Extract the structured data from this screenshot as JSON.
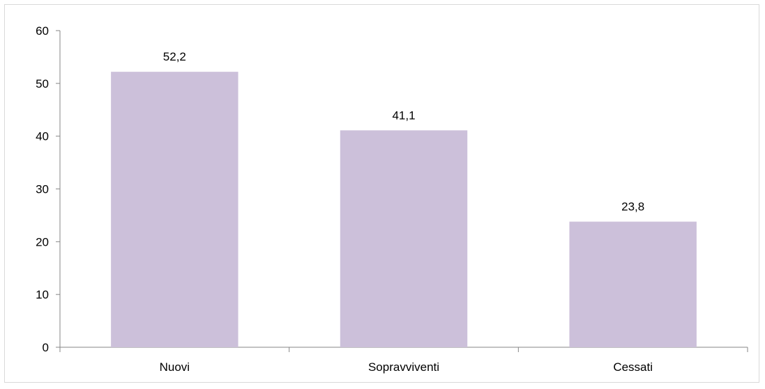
{
  "chart_data": {
    "type": "bar",
    "categories": [
      "Nuovi",
      "Sopravviventi",
      "Cessati"
    ],
    "values": [
      52.2,
      41.1,
      23.8
    ],
    "data_labels": [
      "52,2",
      "41,1",
      "23,8"
    ],
    "title": "",
    "xlabel": "",
    "ylabel": "",
    "ylim": [
      0,
      60
    ],
    "yticks": [
      0,
      10,
      20,
      30,
      40,
      50,
      60
    ],
    "ytick_labels": [
      "0",
      "10",
      "20",
      "30",
      "40",
      "50",
      "60"
    ],
    "grid": false,
    "legend": "none",
    "bar_color": "#ccc0da",
    "axis_color": "#868686"
  }
}
